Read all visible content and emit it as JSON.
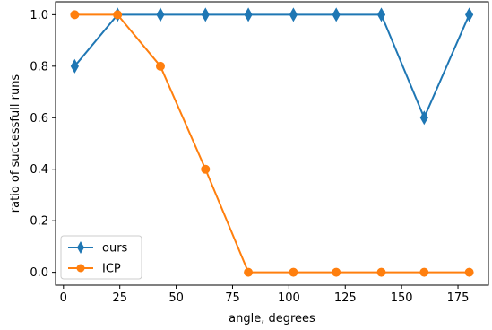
{
  "chart_data": {
    "type": "line",
    "title": "",
    "xlabel": "angle, degrees",
    "ylabel": "ratio of successfull runs",
    "xlim": [
      -3.5,
      188.5
    ],
    "ylim": [
      -0.05,
      1.05
    ],
    "xticks": [
      0,
      25,
      50,
      75,
      100,
      125,
      150,
      175
    ],
    "yticks": [
      0.0,
      0.2,
      0.4,
      0.6,
      0.8,
      1.0
    ],
    "xtick_labels": [
      "0",
      "25",
      "50",
      "75",
      "100",
      "125",
      "150",
      "175"
    ],
    "ytick_labels": [
      "0.0",
      "0.2",
      "0.4",
      "0.6",
      "0.8",
      "1.0"
    ],
    "grid": false,
    "legend_position": "lower-left",
    "x": [
      5,
      24,
      43,
      63,
      82,
      102,
      121,
      141,
      160,
      180
    ],
    "series": [
      {
        "name": "ours",
        "color": "#1f77b4",
        "marker": "thin-diamond",
        "values": [
          0.8,
          1.0,
          1.0,
          1.0,
          1.0,
          1.0,
          1.0,
          1.0,
          0.6,
          1.0
        ]
      },
      {
        "name": "ICP",
        "color": "#ff7f0e",
        "marker": "circle",
        "values": [
          1.0,
          1.0,
          0.8,
          0.4,
          0.0,
          0.0,
          0.0,
          0.0,
          0.0,
          0.0
        ]
      }
    ]
  }
}
